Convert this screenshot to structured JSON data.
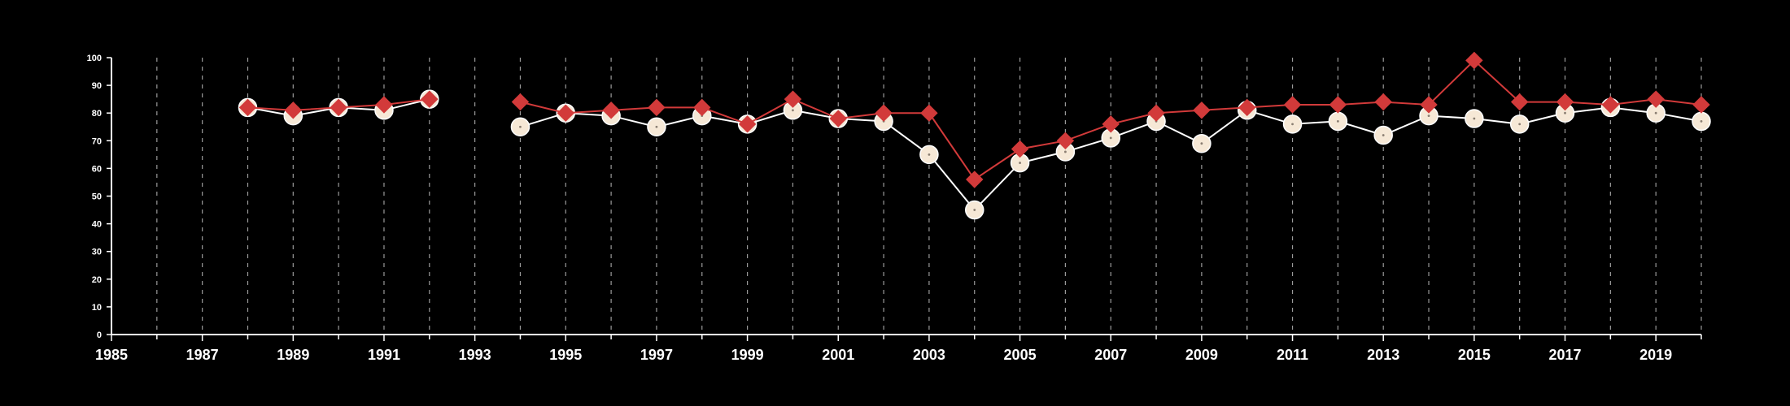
{
  "chart_data": {
    "type": "line",
    "title": "",
    "xlabel": "",
    "ylabel": "",
    "xlim": [
      1985,
      2020
    ],
    "ylim": [
      0,
      100
    ],
    "x_ticks": [
      1985,
      1987,
      1989,
      1991,
      1993,
      1995,
      1997,
      1999,
      2001,
      2003,
      2005,
      2007,
      2009,
      2011,
      2013,
      2015,
      2017,
      2019
    ],
    "y_ticks": [
      0,
      10,
      20,
      30,
      40,
      50,
      60,
      70,
      80,
      90,
      100
    ],
    "grid": "vertical dashed lines at each year",
    "legend": "none",
    "x": [
      1988,
      1989,
      1990,
      1991,
      1992,
      1993,
      1994,
      1995,
      1996,
      1997,
      1998,
      1999,
      2000,
      2001,
      2002,
      2003,
      2004,
      2005,
      2006,
      2007,
      2008,
      2009,
      2010,
      2011,
      2012,
      2013,
      2014,
      2015,
      2016,
      2017,
      2018,
      2019,
      2020
    ],
    "series": [
      {
        "marker": "circle",
        "color": "#ffffff",
        "marker_fill": "#f6e8d6",
        "values": [
          82,
          79,
          82,
          81,
          85,
          null,
          75,
          80,
          79,
          75,
          79,
          76,
          81,
          78,
          77,
          65,
          45,
          62,
          66,
          71,
          77,
          69,
          81,
          76,
          77,
          72,
          79,
          78,
          76,
          80,
          82,
          80,
          77
        ]
      },
      {
        "marker": "diamond",
        "color": "#d23a3a",
        "marker_fill": "#d23a3a",
        "values": [
          82,
          81,
          82,
          83,
          85,
          null,
          84,
          80,
          81,
          82,
          82,
          76,
          85,
          78,
          80,
          80,
          56,
          67,
          70,
          76,
          80,
          81,
          82,
          83,
          83,
          84,
          83,
          99,
          84,
          84,
          83,
          85,
          83
        ]
      }
    ]
  }
}
